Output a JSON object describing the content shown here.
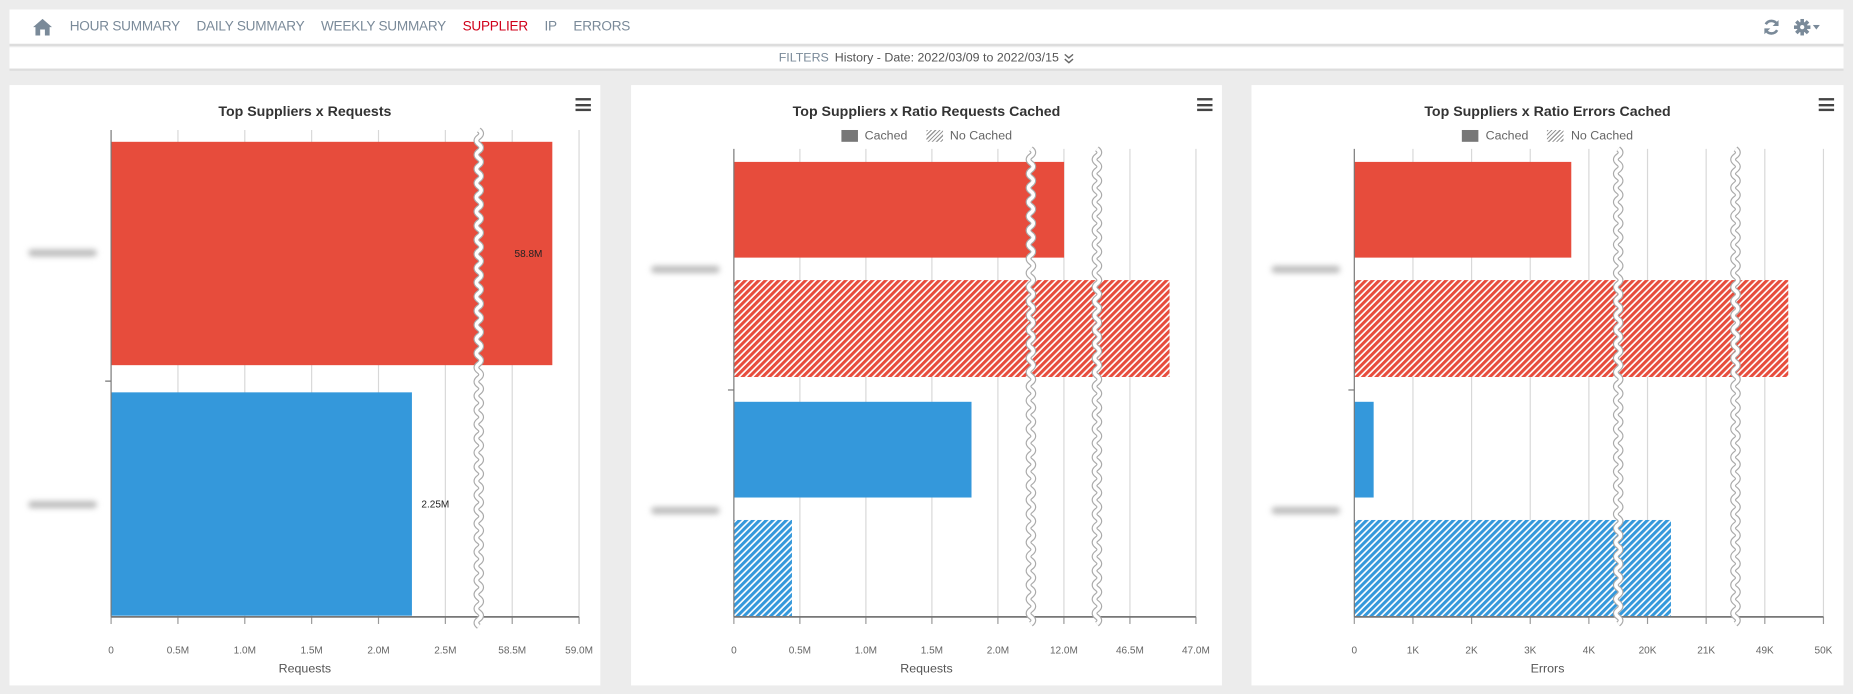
{
  "nav": {
    "items": [
      "HOUR SUMMARY",
      "DAILY SUMMARY",
      "WEEKLY SUMMARY",
      "SUPPLIER",
      "IP",
      "ERRORS"
    ],
    "active": "SUPPLIER",
    "icons": {
      "home": "home-icon",
      "refresh": "refresh-icon",
      "settings": "gear-icon"
    }
  },
  "filters": {
    "label": "FILTERS",
    "text": "History - Date: 2022/03/09 to 2022/03/15",
    "icon": "double-chevron-down-icon"
  },
  "colors": {
    "supplier_1": "#e74c3c",
    "supplier_2": "#3498db",
    "accent": "#d0021b"
  },
  "chart_data": [
    {
      "type": "bar",
      "orientation": "horizontal",
      "title": "Top Suppliers x Requests",
      "xlabel": "Requests",
      "tick_labels": [
        "0",
        "0.5M",
        "1.0M",
        "1.5M",
        "2.0M",
        "2.5M",
        "58.5M",
        "59.0M"
      ],
      "tick_values": [
        0,
        500000,
        1000000,
        1500000,
        2000000,
        2500000,
        58500000,
        59000000
      ],
      "axis_breaks": [
        [
          2500000,
          58500000
        ]
      ],
      "grid": true,
      "series": [
        {
          "values": [
            58800000,
            2250000
          ],
          "data_labels": [
            "58.8M",
            "2.25M"
          ]
        }
      ]
    },
    {
      "type": "bar",
      "orientation": "horizontal",
      "title": "Top Suppliers x Ratio Requests Cached",
      "xlabel": "Requests",
      "legend": [
        "Cached",
        "No Cached"
      ],
      "legend_position": "top",
      "tick_labels": [
        "0",
        "0.5M",
        "1.0M",
        "1.5M",
        "2.0M",
        "12.0M",
        "46.5M",
        "47.0M"
      ],
      "tick_values": [
        0,
        500000,
        1000000,
        1500000,
        2000000,
        12000000,
        46500000,
        47000000
      ],
      "axis_breaks": [
        [
          2000000,
          12000000
        ],
        [
          12000000,
          46500000
        ]
      ],
      "grid": true,
      "series": [
        {
          "name": "Cached",
          "values": [
            12100000,
            1800000
          ]
        },
        {
          "name": "No Cached",
          "values": [
            46800000,
            440000
          ]
        }
      ]
    },
    {
      "type": "bar",
      "orientation": "horizontal",
      "title": "Top Suppliers x Ratio Errors Cached",
      "xlabel": "Errors",
      "legend": [
        "Cached",
        "No Cached"
      ],
      "legend_position": "top",
      "tick_labels": [
        "0",
        "1K",
        "2K",
        "3K",
        "4K",
        "20K",
        "21K",
        "49K",
        "50K"
      ],
      "tick_values": [
        0,
        1000,
        2000,
        3000,
        4000,
        20000,
        21000,
        49000,
        50000
      ],
      "axis_breaks": [
        [
          4000,
          20000
        ],
        [
          21000,
          49000
        ]
      ],
      "grid": true,
      "series": [
        {
          "name": "Cached",
          "values": [
            3700,
            330
          ]
        },
        {
          "name": "No Cached",
          "values": [
            49400,
            20400
          ]
        }
      ]
    }
  ]
}
